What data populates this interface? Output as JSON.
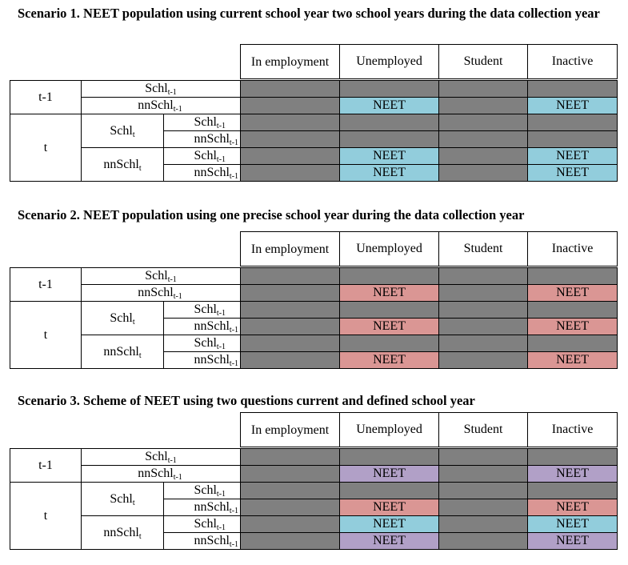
{
  "scenarios": [
    {
      "title": "Scenario 1. NEET population using current school year two school years during the data collection year",
      "rows": [
        [
          "g",
          "g",
          "g",
          "g"
        ],
        [
          "g",
          "blue",
          "g",
          "blue"
        ],
        [
          "g",
          "g",
          "g",
          "g"
        ],
        [
          "g",
          "g",
          "g",
          "g"
        ],
        [
          "g",
          "blue",
          "g",
          "blue"
        ],
        [
          "g",
          "blue",
          "g",
          "blue"
        ]
      ]
    },
    {
      "title": "Scenario 2. NEET population using one precise school year during the data collection year",
      "rows": [
        [
          "g",
          "g",
          "g",
          "g"
        ],
        [
          "g",
          "red",
          "g",
          "red"
        ],
        [
          "g",
          "g",
          "g",
          "g"
        ],
        [
          "g",
          "red",
          "g",
          "red"
        ],
        [
          "g",
          "g",
          "g",
          "g"
        ],
        [
          "g",
          "red",
          "g",
          "red"
        ]
      ]
    },
    {
      "title": "Scenario 3.  Scheme of NEET using two questions current and defined school year",
      "rows": [
        [
          "g",
          "g",
          "g",
          "g"
        ],
        [
          "g",
          "purple",
          "g",
          "purple"
        ],
        [
          "g",
          "g",
          "g",
          "g"
        ],
        [
          "g",
          "red",
          "g",
          "red"
        ],
        [
          "g",
          "blue",
          "g",
          "blue"
        ],
        [
          "g",
          "purple",
          "g",
          "purple"
        ]
      ]
    }
  ],
  "columns": [
    "In employment",
    "Unemployed",
    "Student",
    "Inactive"
  ],
  "row_labels": {
    "t_minus_1": "t-1",
    "t": "t",
    "schl_base": "Schl",
    "nnschl_base": "nnSchl",
    "sub_t_minus_1": "t-1",
    "sub_t": "t"
  },
  "cell_text": "NEET",
  "colors": {
    "grey": "#808080",
    "blue": "#92cddc",
    "red": "#da9694",
    "purple": "#b1a0c7"
  }
}
